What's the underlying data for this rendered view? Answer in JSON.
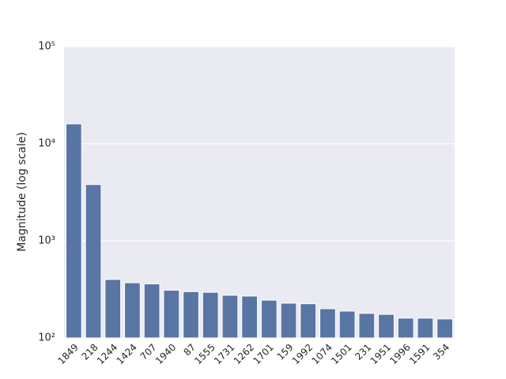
{
  "chart_data": {
    "type": "bar",
    "ylabel": "Magnitude (log scale)",
    "categories": [
      "1849",
      "218",
      "1244",
      "1424",
      "707",
      "1940",
      "87",
      "1555",
      "1731",
      "1262",
      "1701",
      "159",
      "1992",
      "1074",
      "1501",
      "231",
      "1951",
      "1996",
      "1591",
      "354"
    ],
    "values": [
      16000,
      3800,
      400,
      370,
      360,
      310,
      300,
      295,
      275,
      270,
      245,
      228,
      225,
      200,
      189,
      179,
      175,
      160,
      160,
      157
    ],
    "color": "#5875a4",
    "ylim": [
      100,
      100000
    ],
    "yticks": [
      {
        "value": 100,
        "label": "10²"
      },
      {
        "value": 1000,
        "label": "10³"
      },
      {
        "value": 10000,
        "label": "10⁴"
      },
      {
        "value": 100000,
        "label": "10⁵"
      }
    ],
    "log_scale": true,
    "grid": true
  }
}
